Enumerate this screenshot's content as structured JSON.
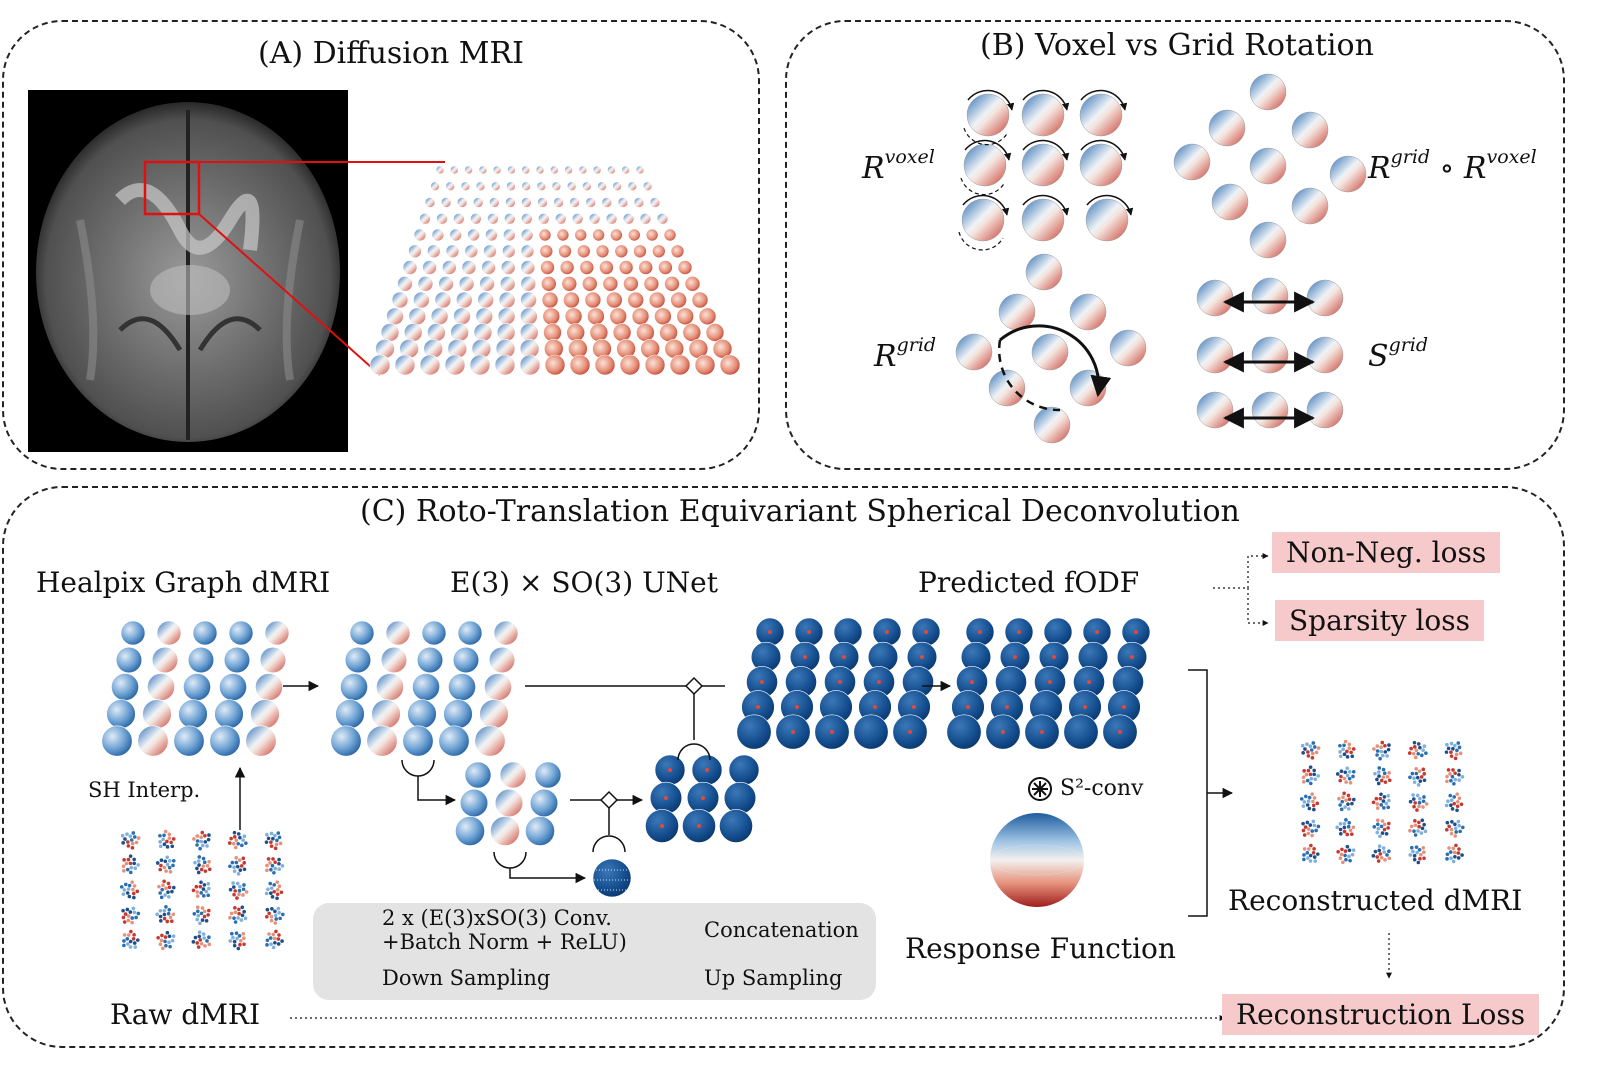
{
  "panel_a": {
    "title": "(A) Diffusion MRI"
  },
  "panel_b": {
    "title": "(B) Voxel vs Grid Rotation",
    "r_voxel": {
      "base": "R",
      "sup": "voxel"
    },
    "r_grid_rvoxel": {
      "base1": "R",
      "sup1": "grid",
      "op": "∘",
      "base2": "R",
      "sup2": "voxel"
    },
    "r_grid": {
      "base": "R",
      "sup": "grid"
    },
    "s_grid": {
      "base": "S",
      "sup": "grid"
    }
  },
  "panel_c": {
    "title": "(C) Roto-Translation Equivariant Spherical Deconvolution",
    "healpix_label": "Healpix Graph dMRI",
    "unet_label": "E(3) × SO(3) UNet",
    "predicted_label": "Predicted fODF",
    "sh_interp_label": "SH Interp.",
    "raw_label": "Raw dMRI",
    "s2conv_label": "S²-conv",
    "response_label": "Response Function",
    "reconstructed_label": "Reconstructed dMRI",
    "losses": {
      "nonneg": "Non-Neg. loss",
      "sparsity": "Sparsity loss",
      "reconstruction": "Reconstruction Loss"
    },
    "legend": {
      "conv_line1": "2 x (E(3)xSO(3) Conv.",
      "conv_line2": "+Batch Norm + ReLU)",
      "concat": "Concatenation",
      "down": "Down Sampling",
      "up": "Up Sampling"
    }
  },
  "colors": {
    "blue": "#2a6fb0",
    "dark_blue": "#0c3f7a",
    "red": "#c43a31",
    "light_red": "#f2b9a6",
    "loss_bg": "#f6caca",
    "legend_bg": "#e3e3e3"
  }
}
